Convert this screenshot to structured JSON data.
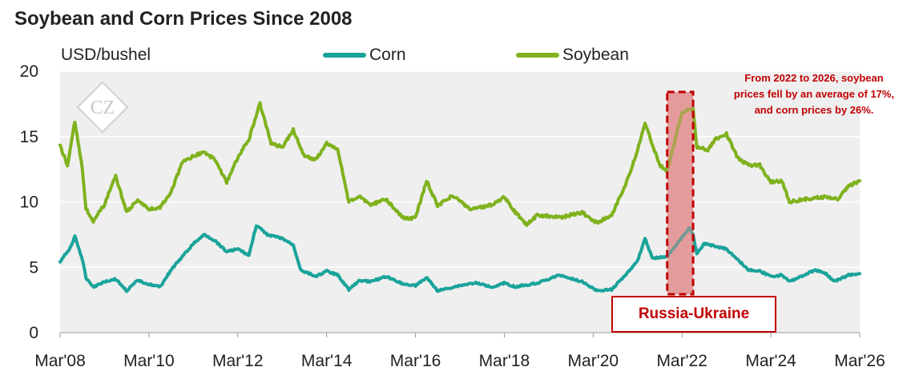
{
  "title": "Soybean and Corn Prices Since 2008",
  "unit_label": "USD/bushel",
  "watermark": "CZ",
  "annotation_note": "From 2022 to 2026, soybean prices fell by an average of 17%, and corn prices by 26%.",
  "event_label": "Russia-Ukraine",
  "colors": {
    "corn": "#1aa39a",
    "soybean": "#7fb21d",
    "highlight": "#e38f8f",
    "accent": "#c00000",
    "plot_bg": "#efefef"
  },
  "chart_data": {
    "type": "line",
    "title": "Soybean and Corn Prices Since 2008",
    "ylabel": "USD/bushel",
    "xlabel": "",
    "ylim": [
      0,
      20
    ],
    "xlim": [
      "2008-03",
      "2026-03"
    ],
    "grid": true,
    "legend": "top",
    "y_ticks": [
      "0",
      "5",
      "10",
      "15",
      "20"
    ],
    "x_ticks": [
      {
        "label": "Mar'08",
        "date": "2008-03"
      },
      {
        "label": "Mar'10",
        "date": "2010-03"
      },
      {
        "label": "Mar'12",
        "date": "2012-03"
      },
      {
        "label": "Mar'14",
        "date": "2014-03"
      },
      {
        "label": "Mar'16",
        "date": "2016-03"
      },
      {
        "label": "Mar'18",
        "date": "2018-03"
      },
      {
        "label": "Mar'20",
        "date": "2020-03"
      },
      {
        "label": "Mar'22",
        "date": "2022-03"
      },
      {
        "label": "Mar'24",
        "date": "2024-03"
      },
      {
        "label": "Mar'26",
        "date": "2026-03"
      }
    ],
    "highlight_range": {
      "start": "2021-11",
      "end": "2022-06",
      "label": "Russia-Ukraine"
    },
    "series": [
      {
        "name": "Corn",
        "color": "#1aa39a",
        "points": [
          [
            "2008-03",
            5.4
          ],
          [
            "2008-06",
            6.6
          ],
          [
            "2008-07",
            7.4
          ],
          [
            "2008-09",
            5.6
          ],
          [
            "2008-10",
            4.2
          ],
          [
            "2008-12",
            3.5
          ],
          [
            "2009-03",
            3.9
          ],
          [
            "2009-06",
            4.1
          ],
          [
            "2009-09",
            3.2
          ],
          [
            "2009-12",
            4.0
          ],
          [
            "2010-03",
            3.7
          ],
          [
            "2010-06",
            3.5
          ],
          [
            "2010-09",
            4.8
          ],
          [
            "2010-12",
            5.8
          ],
          [
            "2011-03",
            6.8
          ],
          [
            "2011-06",
            7.5
          ],
          [
            "2011-09",
            7.0
          ],
          [
            "2011-12",
            6.2
          ],
          [
            "2012-03",
            6.4
          ],
          [
            "2012-06",
            5.9
          ],
          [
            "2012-08",
            8.2
          ],
          [
            "2012-11",
            7.5
          ],
          [
            "2013-03",
            7.2
          ],
          [
            "2013-06",
            6.7
          ],
          [
            "2013-08",
            4.8
          ],
          [
            "2013-12",
            4.3
          ],
          [
            "2014-03",
            4.7
          ],
          [
            "2014-06",
            4.4
          ],
          [
            "2014-09",
            3.3
          ],
          [
            "2014-12",
            4.0
          ],
          [
            "2015-03",
            3.9
          ],
          [
            "2015-07",
            4.3
          ],
          [
            "2015-12",
            3.7
          ],
          [
            "2016-03",
            3.6
          ],
          [
            "2016-06",
            4.2
          ],
          [
            "2016-09",
            3.2
          ],
          [
            "2017-03",
            3.6
          ],
          [
            "2017-07",
            3.8
          ],
          [
            "2017-12",
            3.5
          ],
          [
            "2018-03",
            3.8
          ],
          [
            "2018-06",
            3.5
          ],
          [
            "2018-12",
            3.8
          ],
          [
            "2019-06",
            4.4
          ],
          [
            "2019-12",
            3.9
          ],
          [
            "2020-04",
            3.2
          ],
          [
            "2020-08",
            3.3
          ],
          [
            "2020-12",
            4.5
          ],
          [
            "2021-03",
            5.5
          ],
          [
            "2021-05",
            7.2
          ],
          [
            "2021-07",
            5.7
          ],
          [
            "2021-11",
            5.8
          ],
          [
            "2022-03",
            7.3
          ],
          [
            "2022-05",
            8.0
          ],
          [
            "2022-06",
            7.5
          ],
          [
            "2022-07",
            6.0
          ],
          [
            "2022-09",
            6.8
          ],
          [
            "2022-12",
            6.6
          ],
          [
            "2023-03",
            6.4
          ],
          [
            "2023-06",
            5.6
          ],
          [
            "2023-09",
            4.8
          ],
          [
            "2023-12",
            4.7
          ],
          [
            "2024-03",
            4.3
          ],
          [
            "2024-06",
            4.4
          ],
          [
            "2024-08",
            3.9
          ],
          [
            "2024-12",
            4.4
          ],
          [
            "2025-03",
            4.8
          ],
          [
            "2025-06",
            4.5
          ],
          [
            "2025-08",
            3.9
          ],
          [
            "2025-12",
            4.4
          ],
          [
            "2026-03",
            4.5
          ]
        ]
      },
      {
        "name": "Soybean",
        "color": "#7fb21d",
        "points": [
          [
            "2008-03",
            14.3
          ],
          [
            "2008-05",
            12.8
          ],
          [
            "2008-07",
            16.2
          ],
          [
            "2008-09",
            12.5
          ],
          [
            "2008-10",
            9.5
          ],
          [
            "2008-12",
            8.5
          ],
          [
            "2009-03",
            9.8
          ],
          [
            "2009-06",
            12.0
          ],
          [
            "2009-09",
            9.2
          ],
          [
            "2009-12",
            10.2
          ],
          [
            "2010-03",
            9.4
          ],
          [
            "2010-06",
            9.6
          ],
          [
            "2010-09",
            10.8
          ],
          [
            "2010-12",
            13.0
          ],
          [
            "2011-03",
            13.5
          ],
          [
            "2011-06",
            13.8
          ],
          [
            "2011-09",
            13.2
          ],
          [
            "2011-12",
            11.5
          ],
          [
            "2012-03",
            13.4
          ],
          [
            "2012-06",
            14.8
          ],
          [
            "2012-09",
            17.5
          ],
          [
            "2012-12",
            14.5
          ],
          [
            "2013-03",
            14.2
          ],
          [
            "2013-06",
            15.5
          ],
          [
            "2013-09",
            13.5
          ],
          [
            "2013-12",
            13.2
          ],
          [
            "2014-03",
            14.5
          ],
          [
            "2014-06",
            14.0
          ],
          [
            "2014-09",
            10.0
          ],
          [
            "2014-12",
            10.4
          ],
          [
            "2015-03",
            9.8
          ],
          [
            "2015-07",
            10.2
          ],
          [
            "2015-12",
            8.7
          ],
          [
            "2016-03",
            8.8
          ],
          [
            "2016-06",
            11.6
          ],
          [
            "2016-09",
            9.7
          ],
          [
            "2017-01",
            10.5
          ],
          [
            "2017-06",
            9.4
          ],
          [
            "2017-12",
            9.8
          ],
          [
            "2018-03",
            10.4
          ],
          [
            "2018-06",
            9.2
          ],
          [
            "2018-09",
            8.3
          ],
          [
            "2018-12",
            9.0
          ],
          [
            "2019-06",
            8.8
          ],
          [
            "2019-12",
            9.2
          ],
          [
            "2020-04",
            8.4
          ],
          [
            "2020-08",
            9.0
          ],
          [
            "2020-12",
            11.5
          ],
          [
            "2021-03",
            14.0
          ],
          [
            "2021-05",
            16.0
          ],
          [
            "2021-09",
            12.8
          ],
          [
            "2021-11",
            12.4
          ],
          [
            "2022-03",
            16.8
          ],
          [
            "2022-06",
            17.2
          ],
          [
            "2022-07",
            14.2
          ],
          [
            "2022-10",
            14.0
          ],
          [
            "2022-12",
            14.8
          ],
          [
            "2023-03",
            15.2
          ],
          [
            "2023-06",
            13.4
          ],
          [
            "2023-09",
            12.8
          ],
          [
            "2023-12",
            12.8
          ],
          [
            "2024-03",
            11.5
          ],
          [
            "2024-06",
            11.6
          ],
          [
            "2024-08",
            10.0
          ],
          [
            "2024-12",
            10.2
          ],
          [
            "2025-03",
            10.3
          ],
          [
            "2025-06",
            10.4
          ],
          [
            "2025-09",
            10.2
          ],
          [
            "2025-12",
            11.2
          ],
          [
            "2026-03",
            11.6
          ]
        ]
      }
    ]
  }
}
